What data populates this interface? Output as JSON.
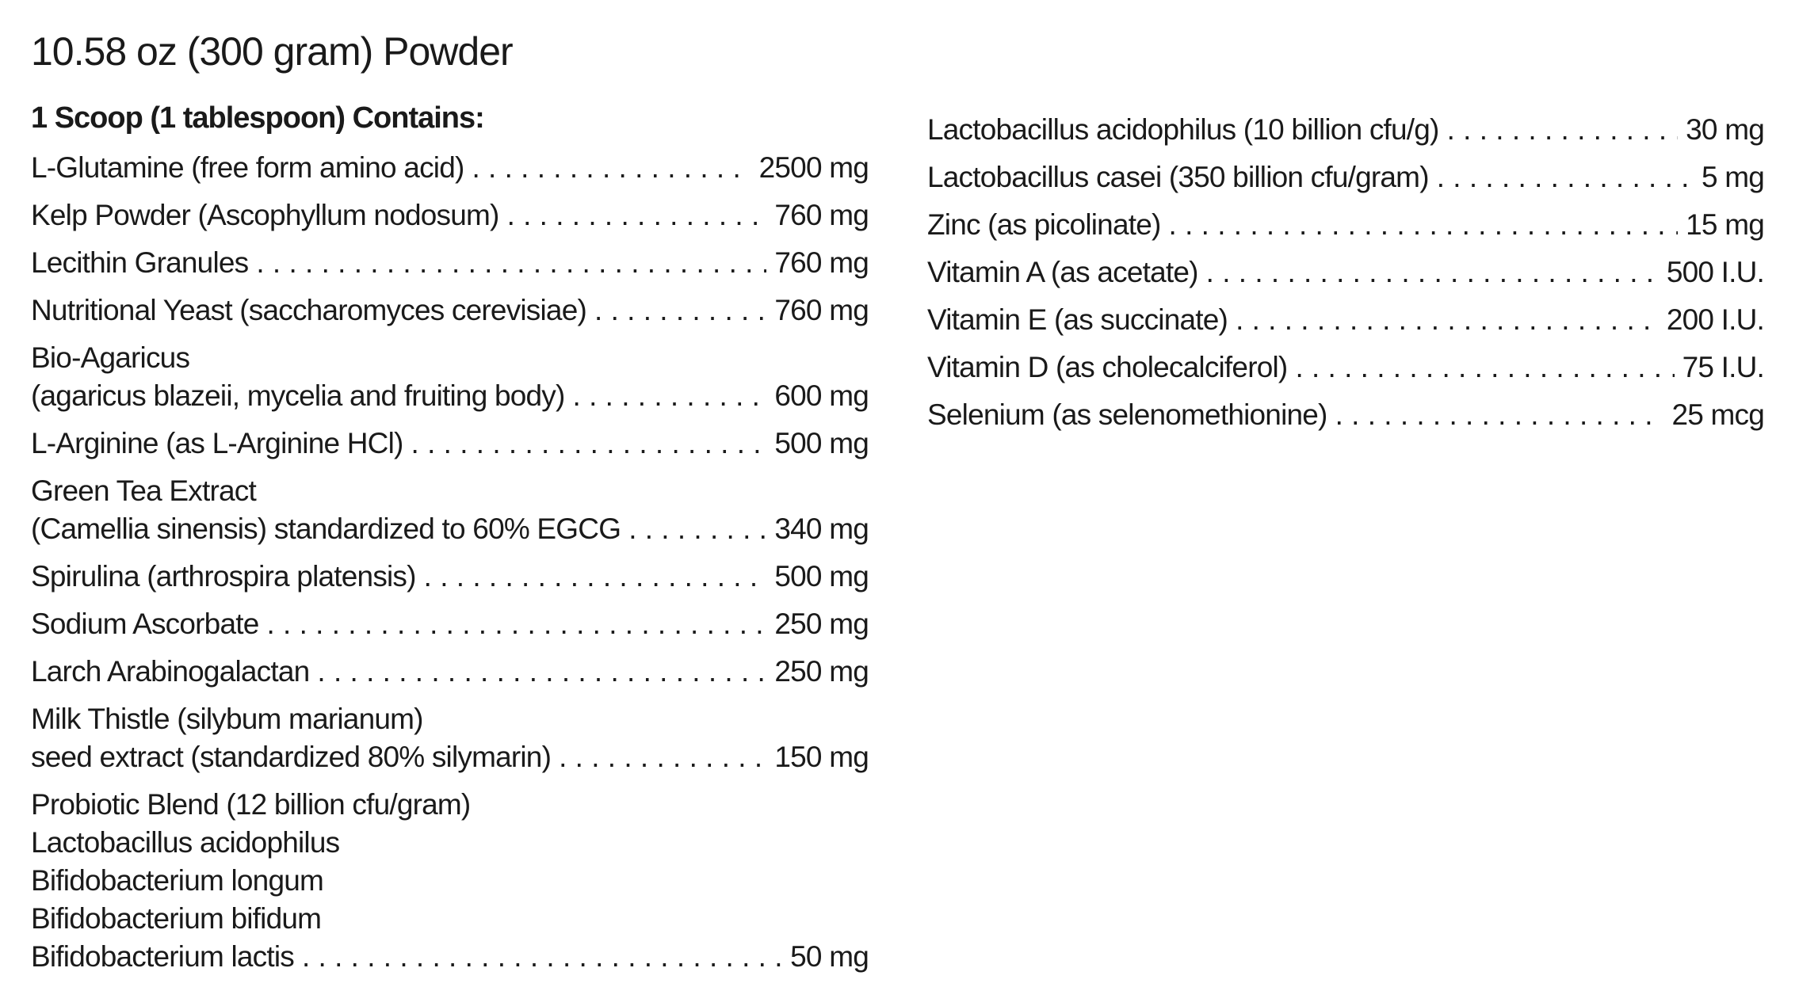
{
  "title": "10.58 oz (300 gram) Powder",
  "heading": "1 Scoop (1 tablespoon) Contains:",
  "left_items": [
    {
      "lines": [
        "L-Glutamine (free form amino acid)"
      ],
      "amount": "2500 mg"
    },
    {
      "lines": [
        "Kelp Powder (Ascophyllum nodosum)"
      ],
      "amount": "760 mg"
    },
    {
      "lines": [
        "Lecithin Granules"
      ],
      "amount": "760 mg"
    },
    {
      "lines": [
        "Nutritional Yeast (saccharomyces cerevisiae)"
      ],
      "amount": "760 mg"
    },
    {
      "lines": [
        "Bio-Agaricus",
        "(agaricus blazeii, mycelia and fruiting body)"
      ],
      "amount": "600 mg"
    },
    {
      "lines": [
        "L-Arginine (as L-Arginine HCl)"
      ],
      "amount": "500 mg"
    },
    {
      "lines": [
        "Green Tea Extract",
        "(Camellia sinensis) standardized to 60% EGCG"
      ],
      "amount": "340 mg"
    },
    {
      "lines": [
        "Spirulina (arthrospira platensis)"
      ],
      "amount": "500 mg"
    },
    {
      "lines": [
        "Sodium Ascorbate"
      ],
      "amount": "250 mg"
    },
    {
      "lines": [
        "Larch Arabinogalactan"
      ],
      "amount": "250 mg"
    },
    {
      "lines": [
        "Milk Thistle (silybum marianum)",
        "seed extract (standardized 80% silymarin)"
      ],
      "amount": "150 mg"
    },
    {
      "lines": [
        "Probiotic Blend (12 billion cfu/gram)",
        "Lactobacillus acidophilus",
        "Bifidobacterium longum",
        "Bifidobacterium bifidum",
        "Bifidobacterium lactis"
      ],
      "amount": "50 mg"
    }
  ],
  "right_items": [
    {
      "lines": [
        "Lactobacillus acidophilus (10 billion cfu/g)"
      ],
      "amount": "30 mg"
    },
    {
      "lines": [
        "Lactobacillus casei (350 billion cfu/gram)"
      ],
      "amount": "5 mg"
    },
    {
      "lines": [
        "Zinc (as picolinate)"
      ],
      "amount": "15 mg"
    },
    {
      "lines": [
        "Vitamin A (as acetate)"
      ],
      "amount": "500 I.U."
    },
    {
      "lines": [
        "Vitamin E (as succinate)"
      ],
      "amount": "200 I.U."
    },
    {
      "lines": [
        "Vitamin D (as cholecalciferol)"
      ],
      "amount": "75 I.U."
    },
    {
      "lines": [
        "Selenium (as selenomethionine)"
      ],
      "amount": "25 mcg"
    }
  ]
}
